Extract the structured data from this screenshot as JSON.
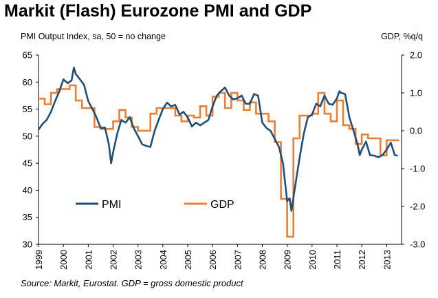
{
  "title": "Markit (Flash) Eurozone PMI and GDP",
  "source": "Source: Markit, Eurostat. GDP = gross domestic product",
  "chart_data": {
    "type": "line",
    "title": "Markit (Flash) Eurozone PMI and GDP",
    "left_axis_label": "PMI Output Index, sa, 50 = no change",
    "right_axis_label": "GDP, %q/q",
    "left_ylim": [
      30,
      65
    ],
    "left_ticks": [
      "30",
      "35",
      "40",
      "45",
      "50",
      "55",
      "60",
      "65"
    ],
    "right_ylim": [
      -3.0,
      2.0
    ],
    "right_ticks": [
      "-3.0",
      "-2.0",
      "-1.0",
      "0.0",
      "1.0",
      "2.0"
    ],
    "x_range": [
      1999.0,
      2013.6
    ],
    "x_ticks": [
      "1999",
      "2000",
      "2001",
      "2002",
      "2003",
      "2004",
      "2005",
      "2006",
      "2007",
      "2008",
      "2009",
      "2010",
      "2011",
      "2012",
      "2013"
    ],
    "grid": false,
    "legend_position": "bottom-left",
    "series": [
      {
        "name": "PMI",
        "axis": "left",
        "color": "#1F4E79",
        "points": [
          [
            1999.0,
            51.2
          ],
          [
            1999.17,
            52.3
          ],
          [
            1999.33,
            53.0
          ],
          [
            1999.5,
            54.5
          ],
          [
            1999.67,
            56.5
          ],
          [
            1999.83,
            58.2
          ],
          [
            2000.0,
            60.5
          ],
          [
            2000.17,
            59.8
          ],
          [
            2000.33,
            60.3
          ],
          [
            2000.42,
            62.7
          ],
          [
            2000.5,
            61.5
          ],
          [
            2000.67,
            60.5
          ],
          [
            2000.83,
            59.5
          ],
          [
            2001.0,
            56.5
          ],
          [
            2001.17,
            55.0
          ],
          [
            2001.33,
            53.5
          ],
          [
            2001.5,
            51.5
          ],
          [
            2001.67,
            51.6
          ],
          [
            2001.83,
            48.5
          ],
          [
            2001.92,
            45.0
          ],
          [
            2002.0,
            47.0
          ],
          [
            2002.17,
            50.5
          ],
          [
            2002.33,
            53.0
          ],
          [
            2002.5,
            52.5
          ],
          [
            2002.67,
            53.5
          ],
          [
            2002.83,
            51.5
          ],
          [
            2003.0,
            50.0
          ],
          [
            2003.17,
            48.5
          ],
          [
            2003.33,
            48.2
          ],
          [
            2003.5,
            48.0
          ],
          [
            2003.67,
            51.0
          ],
          [
            2003.83,
            53.0
          ],
          [
            2004.0,
            55.0
          ],
          [
            2004.17,
            56.2
          ],
          [
            2004.33,
            55.5
          ],
          [
            2004.5,
            55.8
          ],
          [
            2004.67,
            54.0
          ],
          [
            2004.83,
            54.5
          ],
          [
            2005.0,
            53.5
          ],
          [
            2005.17,
            51.8
          ],
          [
            2005.33,
            52.5
          ],
          [
            2005.5,
            52.0
          ],
          [
            2005.67,
            52.5
          ],
          [
            2005.83,
            53.0
          ],
          [
            2006.0,
            55.5
          ],
          [
            2006.17,
            57.5
          ],
          [
            2006.33,
            58.3
          ],
          [
            2006.5,
            59.0
          ],
          [
            2006.67,
            57.5
          ],
          [
            2006.83,
            56.8
          ],
          [
            2007.0,
            57.0
          ],
          [
            2007.17,
            57.5
          ],
          [
            2007.33,
            56.0
          ],
          [
            2007.5,
            56.0
          ],
          [
            2007.67,
            57.8
          ],
          [
            2007.83,
            57.5
          ],
          [
            2008.0,
            52.5
          ],
          [
            2008.17,
            51.5
          ],
          [
            2008.33,
            51.0
          ],
          [
            2008.5,
            49.5
          ],
          [
            2008.67,
            48.0
          ],
          [
            2008.83,
            45.0
          ],
          [
            2009.0,
            38.0
          ],
          [
            2009.1,
            38.5
          ],
          [
            2009.17,
            36.2
          ],
          [
            2009.33,
            41.0
          ],
          [
            2009.5,
            46.0
          ],
          [
            2009.67,
            50.5
          ],
          [
            2009.83,
            53.5
          ],
          [
            2010.0,
            54.0
          ],
          [
            2010.17,
            56.0
          ],
          [
            2010.33,
            55.5
          ],
          [
            2010.5,
            57.5
          ],
          [
            2010.67,
            56.0
          ],
          [
            2010.83,
            55.8
          ],
          [
            2011.0,
            57.0
          ],
          [
            2011.1,
            58.3
          ],
          [
            2011.17,
            58.0
          ],
          [
            2011.33,
            57.8
          ],
          [
            2011.5,
            53.5
          ],
          [
            2011.67,
            51.0
          ],
          [
            2011.83,
            48.5
          ],
          [
            2011.92,
            46.5
          ],
          [
            2012.0,
            47.5
          ],
          [
            2012.17,
            49.0
          ],
          [
            2012.33,
            46.5
          ],
          [
            2012.5,
            46.4
          ],
          [
            2012.67,
            46.1
          ],
          [
            2012.83,
            46.5
          ],
          [
            2013.0,
            47.5
          ],
          [
            2013.17,
            48.8
          ],
          [
            2013.33,
            46.5
          ],
          [
            2013.45,
            46.4
          ]
        ]
      },
      {
        "name": "GDP",
        "axis": "right",
        "color": "#ED7D31",
        "steps": [
          [
            1999.0,
            0.85
          ],
          [
            1999.25,
            0.7
          ],
          [
            1999.5,
            1.0
          ],
          [
            1999.75,
            1.1
          ],
          [
            2000.0,
            1.1
          ],
          [
            2000.25,
            1.2
          ],
          [
            2000.5,
            0.8
          ],
          [
            2000.75,
            0.6
          ],
          [
            2001.0,
            0.6
          ],
          [
            2001.25,
            0.1
          ],
          [
            2001.5,
            0.05
          ],
          [
            2001.75,
            0.05
          ],
          [
            2002.0,
            0.25
          ],
          [
            2002.25,
            0.55
          ],
          [
            2002.5,
            0.35
          ],
          [
            2002.75,
            0.1
          ],
          [
            2003.0,
            0.0
          ],
          [
            2003.25,
            0.0
          ],
          [
            2003.5,
            0.45
          ],
          [
            2003.75,
            0.6
          ],
          [
            2004.0,
            0.6
          ],
          [
            2004.25,
            0.6
          ],
          [
            2004.5,
            0.4
          ],
          [
            2004.75,
            0.25
          ],
          [
            2005.0,
            0.4
          ],
          [
            2005.25,
            0.35
          ],
          [
            2005.5,
            0.65
          ],
          [
            2005.75,
            0.4
          ],
          [
            2006.0,
            0.9
          ],
          [
            2006.25,
            1.0
          ],
          [
            2006.5,
            0.6
          ],
          [
            2006.75,
            1.0
          ],
          [
            2007.0,
            0.8
          ],
          [
            2007.25,
            0.55
          ],
          [
            2007.5,
            0.75
          ],
          [
            2007.75,
            0.45
          ],
          [
            2008.0,
            0.45
          ],
          [
            2008.25,
            0.25
          ],
          [
            2008.5,
            -0.3
          ],
          [
            2008.75,
            -1.8
          ],
          [
            2009.0,
            -2.8
          ],
          [
            2009.25,
            -0.2
          ],
          [
            2009.5,
            0.4
          ],
          [
            2009.75,
            0.4
          ],
          [
            2010.0,
            0.45
          ],
          [
            2010.25,
            1.0
          ],
          [
            2010.5,
            0.45
          ],
          [
            2010.75,
            0.25
          ],
          [
            2011.0,
            0.8
          ],
          [
            2011.25,
            0.15
          ],
          [
            2011.5,
            0.05
          ],
          [
            2011.75,
            -0.35
          ],
          [
            2012.0,
            -0.1
          ],
          [
            2012.25,
            -0.2
          ],
          [
            2012.5,
            -0.2
          ],
          [
            2012.75,
            -0.65
          ],
          [
            2013.0,
            -0.25
          ],
          [
            2013.25,
            -0.25
          ]
        ]
      }
    ]
  }
}
